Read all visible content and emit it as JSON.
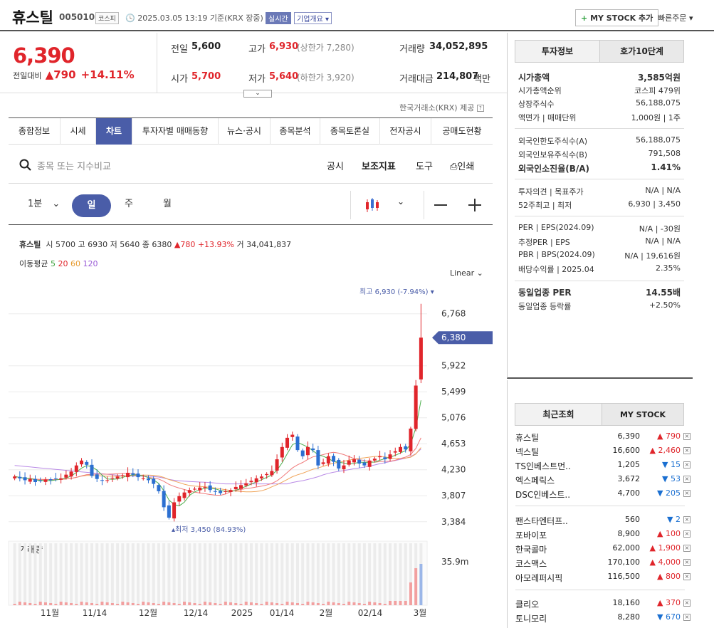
{
  "header": {
    "name": "휴스틸",
    "code": "005010",
    "market": "코스피",
    "datetime": "2025.03.05 13:19",
    "basis": "기준(KRX 장중)",
    "realtime": "실시간",
    "corp_info": "기업개요",
    "mystock": "MY STOCK 추가",
    "quick": "빠른주문"
  },
  "price": {
    "current": "6,390",
    "change_label": "전일대비",
    "change": "790",
    "pct": "+14.11%",
    "prev_label": "전일",
    "prev": "5,600",
    "high_label": "고가",
    "high": "6,930",
    "upper_limit": "(상한가 7,280)",
    "volume_label": "거래량",
    "volume": "34,052,895",
    "open_label": "시가",
    "open": "5,700",
    "low_label": "저가",
    "low": "5,640",
    "lower_limit": "(하한가 3,920)",
    "amount_label": "거래대금",
    "amount": "214,807",
    "amount_unit": "백만",
    "provider": "한국거래소(KRX) 제공"
  },
  "tabs": [
    "종합정보",
    "시세",
    "차트",
    "투자자별 매매동향",
    "뉴스·공시",
    "종목분석",
    "종목토론실",
    "전자공시",
    "공매도현황"
  ],
  "search": {
    "placeholder": "종목 또는 지수비교",
    "links": [
      "공시",
      "보조지표",
      "도구",
      "인쇄"
    ]
  },
  "periods": [
    "1분",
    "일",
    "주",
    "월"
  ],
  "chart_info": {
    "name": "휴스틸",
    "open_l": "시",
    "open": "5700",
    "high_l": "고",
    "high": "6930",
    "low_l": "저",
    "low": "5640",
    "close_l": "종",
    "close": "6380",
    "chg": "780",
    "pct": "+13.93%",
    "vol_l": "거",
    "vol": "34,041,837",
    "ma_label": "이동평균",
    "ma5": "5",
    "ma20": "20",
    "ma60": "60",
    "ma120": "120",
    "scale": "Linear",
    "max_label": "최고 6,930 (-7.94%)",
    "min_label": "최저 3,450 (84.93%)",
    "volume_title": "거래량",
    "vol_max": "35.9m",
    "cur_tag": "6,380"
  },
  "chart_data": {
    "type": "candlestick",
    "y_ticks": [
      "6,768",
      "5,922",
      "5,499",
      "5,076",
      "4,653",
      "4,230",
      "3,807",
      "3,384"
    ],
    "x_ticks": [
      "11월",
      "11/14",
      "12월",
      "12/14",
      "2025",
      "01/14",
      "2월",
      "02/14",
      "3월"
    ],
    "closes": [
      4120,
      4090,
      4060,
      4080,
      4030,
      4050,
      4070,
      4060,
      4080,
      4090,
      4150,
      4200,
      4300,
      4380,
      4310,
      4130,
      4080,
      4050,
      4060,
      4100,
      4120,
      4140,
      4180,
      4150,
      4110,
      4090,
      4060,
      4000,
      3880,
      3620,
      3450,
      3700,
      3800,
      3860,
      3900,
      3920,
      3940,
      3950,
      3900,
      3880,
      3850,
      3880,
      3900,
      3950,
      3980,
      4010,
      4050,
      4090,
      4120,
      4160,
      4210,
      4400,
      4600,
      4750,
      4800,
      4550,
      4450,
      4600,
      4550,
      4300,
      4350,
      4450,
      4360,
      4250,
      4300,
      4380,
      4400,
      4330,
      4300,
      4380,
      4410,
      4450,
      4400,
      4480,
      4530,
      4600,
      4560,
      4900,
      5600,
      6380
    ]
  },
  "info": {
    "tab1": "투자정보",
    "tab2": "호가10단계",
    "rows": [
      [
        "시가총액",
        "3,585억원"
      ],
      [
        "시가총액순위",
        "코스피 479위"
      ],
      [
        "상장주식수",
        "56,188,075"
      ],
      [
        "액면가 | 매매단위",
        "1,000원 | 1주"
      ],
      [
        "외국인한도주식수(A)",
        "56,188,075"
      ],
      [
        "외국인보유주식수(B)",
        "791,508"
      ],
      [
        "외국인소진율(B/A)",
        "1.41%"
      ],
      [
        "투자의견 | 목표주가",
        "N/A | N/A"
      ],
      [
        "52주최고 | 최저",
        "6,930 | 3,450"
      ],
      [
        "PER | EPS(2024.09)",
        "N/A | -30원"
      ],
      [
        "추정PER | EPS",
        "N/A | N/A"
      ],
      [
        "PBR | BPS(2024.09)",
        "N/A | 19,616원"
      ],
      [
        "배당수익률 | 2025.04",
        "2.35%"
      ],
      [
        "동일업종 PER",
        "14.55배"
      ],
      [
        "동일업종 등락률",
        "+2.50%"
      ]
    ]
  },
  "recent": {
    "tab1": "최근조회",
    "tab2": "MY STOCK",
    "items": [
      [
        "휴스틸",
        "6,390",
        "790",
        "up"
      ],
      [
        "넥스틸",
        "16,600",
        "2,460",
        "up"
      ],
      [
        "TS인베스트먼..",
        "1,205",
        "15",
        "down"
      ],
      [
        "엑스페릭스",
        "3,672",
        "53",
        "down"
      ],
      [
        "DSC인베스트..",
        "4,700",
        "205",
        "down"
      ],
      [
        "팬스타엔터프..",
        "560",
        "2",
        "down"
      ],
      [
        "포바이포",
        "8,900",
        "100",
        "up"
      ],
      [
        "한국콜마",
        "62,000",
        "1,900",
        "up"
      ],
      [
        "코스맥스",
        "170,100",
        "4,000",
        "up"
      ],
      [
        "아모레퍼시픽",
        "116,500",
        "800",
        "up"
      ],
      [
        "클리오",
        "18,160",
        "370",
        "up"
      ],
      [
        "토니모리",
        "8,280",
        "670",
        "down"
      ]
    ]
  }
}
